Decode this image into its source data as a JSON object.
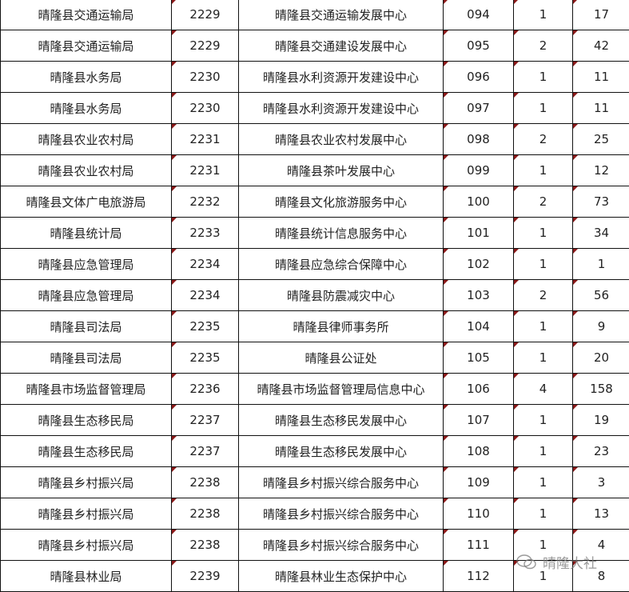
{
  "rows": [
    [
      "晴隆县交通运输局",
      "2229",
      "晴隆县交通运输发展中心",
      "094",
      "1",
      "17"
    ],
    [
      "晴隆县交通运输局",
      "2229",
      "晴隆县交通建设发展中心",
      "095",
      "2",
      "42"
    ],
    [
      "晴隆县水务局",
      "2230",
      "晴隆县水利资源开发建设中心",
      "096",
      "1",
      "11"
    ],
    [
      "晴隆县水务局",
      "2230",
      "晴隆县水利资源开发建设中心",
      "097",
      "1",
      "11"
    ],
    [
      "晴隆县农业农村局",
      "2231",
      "晴隆县农业农村发展中心",
      "098",
      "2",
      "25"
    ],
    [
      "晴隆县农业农村局",
      "2231",
      "晴隆县茶叶发展中心",
      "099",
      "1",
      "12"
    ],
    [
      "晴隆县文体广电旅游局",
      "2232",
      "晴隆县文化旅游服务中心",
      "100",
      "2",
      "73"
    ],
    [
      "晴隆县统计局",
      "2233",
      "晴隆县统计信息服务中心",
      "101",
      "1",
      "34"
    ],
    [
      "晴隆县应急管理局",
      "2234",
      "晴隆县应急综合保障中心",
      "102",
      "1",
      "1"
    ],
    [
      "晴隆县应急管理局",
      "2234",
      "晴隆县防震减灾中心",
      "103",
      "2",
      "56"
    ],
    [
      "晴隆县司法局",
      "2235",
      "晴隆县律师事务所",
      "104",
      "1",
      "9"
    ],
    [
      "晴隆县司法局",
      "2235",
      "晴隆县公证处",
      "105",
      "1",
      "20"
    ],
    [
      "晴隆县市场监督管理局",
      "2236",
      "晴隆县市场监督管理局信息中心",
      "106",
      "4",
      "158"
    ],
    [
      "晴隆县生态移民局",
      "2237",
      "晴隆县生态移民发展中心",
      "107",
      "1",
      "19"
    ],
    [
      "晴隆县生态移民局",
      "2237",
      "晴隆县生态移民发展中心",
      "108",
      "1",
      "23"
    ],
    [
      "晴隆县乡村振兴局",
      "2238",
      "晴隆县乡村振兴综合服务中心",
      "109",
      "1",
      "3"
    ],
    [
      "晴隆县乡村振兴局",
      "2238",
      "晴隆县乡村振兴综合服务中心",
      "110",
      "1",
      "13"
    ],
    [
      "晴隆县乡村振兴局",
      "2238",
      "晴隆县乡村振兴综合服务中心",
      "111",
      "1",
      "4"
    ],
    [
      "晴隆县林业局",
      "2239",
      "晴隆县林业生态保护中心",
      "112",
      "1",
      "8"
    ]
  ],
  "watermark": {
    "text": "晴隆大社",
    "icon": "wechat-icon"
  },
  "colors": {
    "border": "#111111",
    "comment_marker": "#8b1a1a"
  }
}
